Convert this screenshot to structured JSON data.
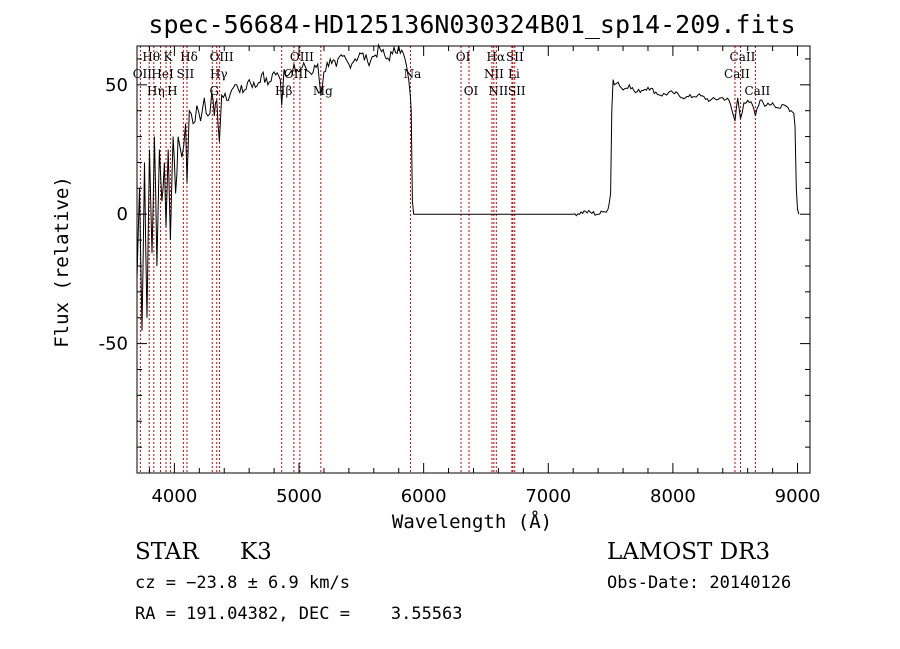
{
  "chart_data": {
    "type": "line",
    "title": "spec-56684-HD125136N030324B01_sp14-209.fits",
    "xlabel": "Wavelength (Å)",
    "ylabel": "Flux (relative)",
    "xlim": [
      3700,
      9100
    ],
    "ylim": [
      -100,
      65
    ],
    "xticks": [
      4000,
      5000,
      6000,
      7000,
      8000,
      9000
    ],
    "xtick_labels": [
      "4000",
      "5000",
      "6000",
      "7000",
      "8000",
      "9000"
    ],
    "yticks": [
      -50,
      0,
      50
    ],
    "ytick_labels": [
      "-50",
      "0",
      "50"
    ],
    "series": [
      {
        "name": "spectrum",
        "x": [
          3700,
          3720,
          3740,
          3760,
          3780,
          3800,
          3820,
          3840,
          3860,
          3880,
          3900,
          3920,
          3933,
          3950,
          3968,
          3990,
          4010,
          4030,
          4060,
          4090,
          4101,
          4120,
          4150,
          4180,
          4210,
          4240,
          4270,
          4300,
          4320,
          4340,
          4361,
          4380,
          4420,
          4460,
          4500,
          4550,
          4600,
          4650,
          4700,
          4750,
          4800,
          4850,
          4861,
          4880,
          4920,
          4960,
          5000,
          5050,
          5100,
          5150,
          5175,
          5200,
          5250,
          5300,
          5350,
          5400,
          5450,
          5500,
          5550,
          5600,
          5650,
          5700,
          5750,
          5800,
          5850,
          5880,
          5893,
          5900,
          5910,
          5920,
          6000,
          6500,
          7000,
          7200,
          7300,
          7400,
          7450,
          7480,
          7500,
          7510,
          7520,
          7530,
          7560,
          7600,
          7650,
          7700,
          7800,
          7900,
          8000,
          8100,
          8200,
          8300,
          8400,
          8450,
          8498,
          8520,
          8542,
          8570,
          8600,
          8640,
          8662,
          8700,
          8750,
          8800,
          8850,
          8900,
          8950,
          8970,
          8980,
          8990,
          9000,
          9010
        ],
        "y": [
          -25,
          10,
          -45,
          20,
          -40,
          25,
          -15,
          30,
          -20,
          25,
          5,
          20,
          -5,
          25,
          -10,
          30,
          8,
          30,
          22,
          35,
          12,
          40,
          35,
          42,
          36,
          45,
          38,
          47,
          38,
          44,
          28,
          46,
          44,
          48,
          50,
          47,
          52,
          49,
          54,
          50,
          55,
          52,
          42,
          56,
          54,
          58,
          55,
          57,
          54,
          58,
          46,
          55,
          60,
          57,
          61,
          58,
          60,
          62,
          59,
          61,
          64,
          60,
          62,
          65,
          60,
          52,
          46,
          40,
          5,
          0,
          0,
          0,
          0,
          0,
          1,
          0,
          1,
          2,
          8,
          40,
          52,
          50,
          51,
          48,
          50,
          47,
          49,
          46,
          47,
          45,
          46,
          44,
          45,
          44,
          36,
          45,
          37,
          43,
          44,
          42,
          38,
          44,
          42,
          43,
          41,
          42,
          40,
          39,
          34,
          10,
          2,
          0
        ],
        "color": "#000000"
      }
    ],
    "lines": [
      {
        "x": 3727,
        "label": "OII",
        "row": 1
      },
      {
        "x": 3798,
        "label": "Hθ",
        "row": 0
      },
      {
        "x": 3835,
        "label": "Hη",
        "row": 2
      },
      {
        "x": 3889,
        "label": "HeI",
        "row": 1
      },
      {
        "x": 3933,
        "label": "K",
        "row": 0
      },
      {
        "x": 3968,
        "label": "H",
        "row": 2
      },
      {
        "x": 4072,
        "label": "SII",
        "row": 1
      },
      {
        "x": 4101,
        "label": "Hδ",
        "row": 0
      },
      {
        "x": 4304,
        "label": "G",
        "row": 2
      },
      {
        "x": 4340,
        "label": "Hγ",
        "row": 1
      },
      {
        "x": 4363,
        "label": "OIII",
        "row": 0
      },
      {
        "x": 4861,
        "label": "Hβ",
        "row": 2
      },
      {
        "x": 4959,
        "label": "OIII",
        "row": 1
      },
      {
        "x": 5007,
        "label": "OIII",
        "row": 0
      },
      {
        "x": 5175,
        "label": "Mg",
        "row": 2
      },
      {
        "x": 5894,
        "label": "Na",
        "row": 1
      },
      {
        "x": 6300,
        "label": "OI",
        "row": 0
      },
      {
        "x": 6364,
        "label": "OI",
        "row": 2
      },
      {
        "x": 6548,
        "label": "NII",
        "row": 1
      },
      {
        "x": 6563,
        "label": "Hα",
        "row": 0
      },
      {
        "x": 6583,
        "label": "NII",
        "row": 2
      },
      {
        "x": 6708,
        "label": "Li",
        "row": 1
      },
      {
        "x": 6716,
        "label": "SII",
        "row": 0
      },
      {
        "x": 6731,
        "label": "SII",
        "row": 2
      },
      {
        "x": 8498,
        "label": "CaII",
        "row": 1
      },
      {
        "x": 8542,
        "label": "CaII",
        "row": 0
      },
      {
        "x": 8662,
        "label": "CaII",
        "row": 2
      }
    ],
    "line_color": "#cc0000"
  },
  "info": {
    "class_label": "STAR",
    "subclass": "K3",
    "survey": "LAMOST DR3",
    "cz": "cz = −23.8 ± 6.9 km/s",
    "obs_date": "Obs-Date: 20140126",
    "coords": "RA = 191.04382, DEC =    3.55563"
  }
}
